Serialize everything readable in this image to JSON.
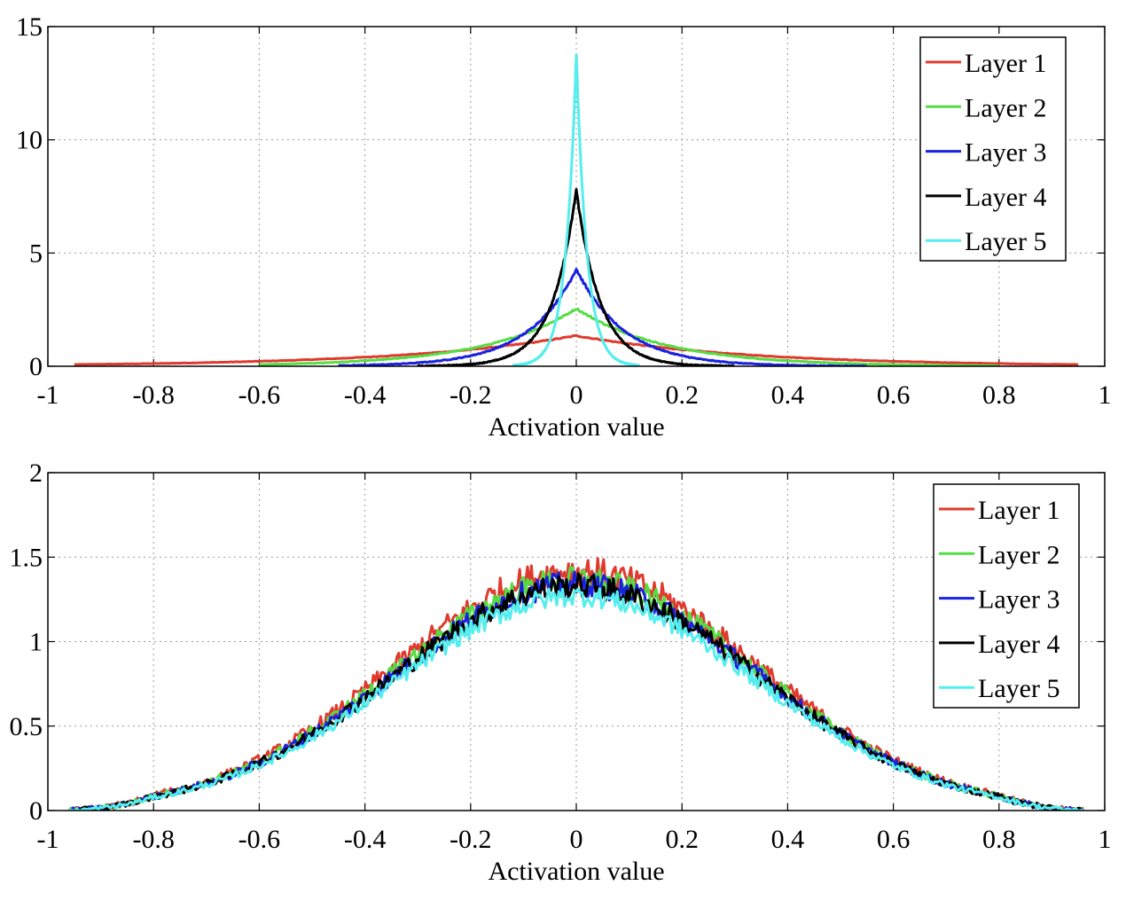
{
  "colors": {
    "layer1": "#e03a2e",
    "layer2": "#55dd44",
    "layer3": "#1a22dd",
    "layer4": "#000000",
    "layer5": "#55eeee"
  },
  "chart_data": [
    {
      "type": "line",
      "xlabel": "Activation value",
      "ylabel": "",
      "xlim": [
        -1,
        1
      ],
      "ylim": [
        0,
        15
      ],
      "xticks": [
        "-1",
        "-0.8",
        "-0.6",
        "-0.4",
        "-0.2",
        "0",
        "0.2",
        "0.4",
        "0.6",
        "0.8",
        "1"
      ],
      "yticks": [
        "0",
        "5",
        "10",
        "15"
      ],
      "grid": true,
      "legend_position": "top-right",
      "series": [
        {
          "name": "Layer 1",
          "color": "#e03a2e",
          "x_range": [
            -0.95,
            0.95
          ],
          "peak": 1.35,
          "tail_width": 0.33,
          "noise": 0.02
        },
        {
          "name": "Layer 2",
          "color": "#55dd44",
          "x_range": [
            -0.6,
            0.8
          ],
          "peak": 2.55,
          "tail_width": 0.17,
          "noise": 0.03
        },
        {
          "name": "Layer 3",
          "color": "#1a22dd",
          "x_range": [
            -0.45,
            0.55
          ],
          "peak": 4.3,
          "tail_width": 0.09,
          "noise": 0.05
        },
        {
          "name": "Layer 4",
          "color": "#000000",
          "x_range": [
            -0.3,
            0.3
          ],
          "peak": 7.8,
          "tail_width": 0.045,
          "noise": 0.06
        },
        {
          "name": "Layer 5",
          "color": "#55eeee",
          "x_range": [
            -0.12,
            0.12
          ],
          "peak": 13.8,
          "tail_width": 0.02,
          "noise": 0.06
        }
      ]
    },
    {
      "type": "line",
      "xlabel": "Activation value",
      "ylabel": "",
      "xlim": [
        -1,
        1
      ],
      "ylim": [
        0,
        2
      ],
      "xticks": [
        "-1",
        "-0.8",
        "-0.6",
        "-0.4",
        "-0.2",
        "0",
        "0.2",
        "0.4",
        "0.6",
        "0.8",
        "1"
      ],
      "yticks": [
        "0",
        "0.5",
        "1",
        "1.5",
        "2"
      ],
      "grid": true,
      "legend_position": "top-right",
      "series": [
        {
          "name": "Layer 1",
          "color": "#e03a2e",
          "x_range": [
            -0.96,
            0.96
          ],
          "peak": 1.42,
          "noise": 0.07
        },
        {
          "name": "Layer 2",
          "color": "#55dd44",
          "x_range": [
            -0.96,
            0.96
          ],
          "peak": 1.37,
          "noise": 0.06
        },
        {
          "name": "Layer 3",
          "color": "#1a22dd",
          "x_range": [
            -0.96,
            0.96
          ],
          "peak": 1.34,
          "noise": 0.06
        },
        {
          "name": "Layer 4",
          "color": "#000000",
          "x_range": [
            -0.96,
            0.96
          ],
          "peak": 1.33,
          "noise": 0.06
        },
        {
          "name": "Layer 5",
          "color": "#55eeee",
          "x_range": [
            -0.96,
            0.96
          ],
          "peak": 1.27,
          "noise": 0.05
        }
      ]
    }
  ]
}
